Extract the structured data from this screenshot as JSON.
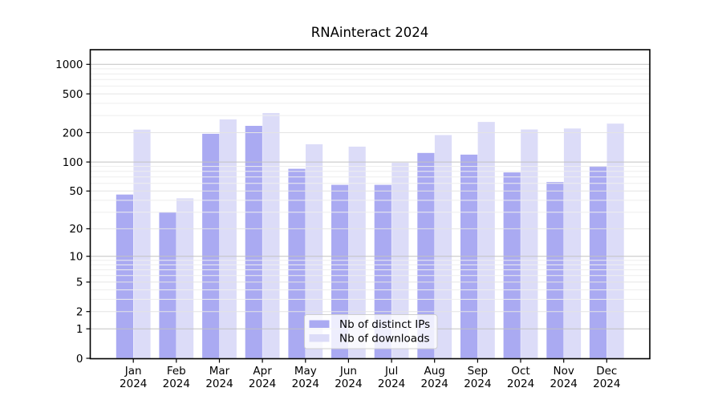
{
  "title": "RNAinteract 2024",
  "chart_data": {
    "type": "bar",
    "title": "RNAinteract 2024",
    "x_categories": [
      "Jan",
      "Feb",
      "Mar",
      "Apr",
      "May",
      "Jun",
      "Jul",
      "Aug",
      "Sep",
      "Oct",
      "Nov",
      "Dec"
    ],
    "x_year": "2024",
    "series": [
      {
        "name": "Nb of distinct IPs",
        "color": "#aaaaf2",
        "values": [
          46,
          30,
          195,
          235,
          85,
          58,
          58,
          124,
          119,
          78,
          62,
          91
        ]
      },
      {
        "name": "Nb of downloads",
        "color": "#dcdcf8",
        "values": [
          215,
          42,
          274,
          318,
          152,
          144,
          98,
          189,
          258,
          216,
          221,
          248
        ]
      }
    ],
    "y_ticks": [
      0,
      1,
      2,
      5,
      10,
      20,
      50,
      100,
      200,
      500,
      1000
    ],
    "y_scale": "log1p",
    "ylim": [
      0,
      1500
    ],
    "grid": true,
    "legend_position": "lower center",
    "style": {
      "grid_major_color": "#c2c2c2",
      "grid_mid_color": "#e4e4e4",
      "grid_minor_color": "#eeeeee",
      "axis_color": "#000000",
      "legend_border_color": "#cfcfcf",
      "legend_bg_color": "#ffffff"
    }
  }
}
